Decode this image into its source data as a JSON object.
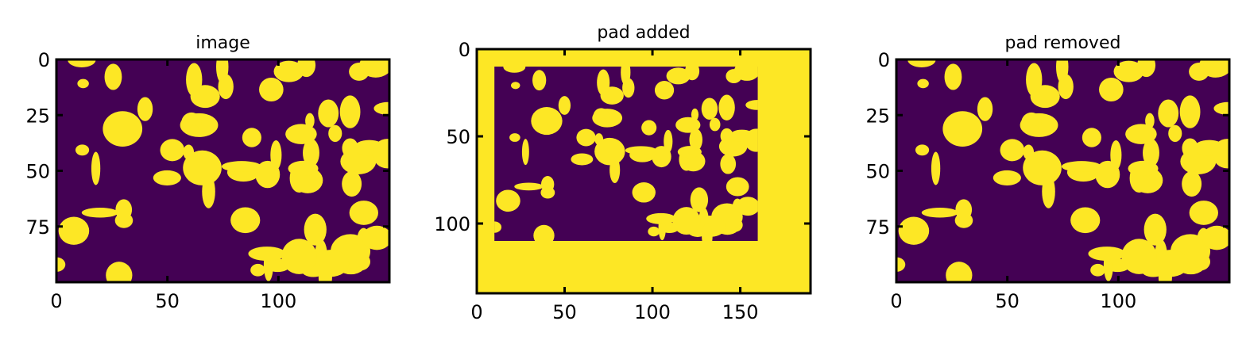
{
  "chart_data": [
    {
      "type": "image",
      "title": "image",
      "xlim": [
        0,
        150
      ],
      "ylim": [
        100,
        0
      ],
      "xticks": [
        0,
        50,
        100
      ],
      "yticks": [
        0,
        25,
        50,
        75
      ],
      "colors": [
        "#440154",
        "#fde725"
      ]
    },
    {
      "type": "image",
      "title": "pad added",
      "xlim": [
        0,
        190
      ],
      "ylim": [
        140,
        0
      ],
      "xticks": [
        0,
        50,
        100,
        150
      ],
      "yticks": [
        0,
        50,
        100
      ],
      "colors": [
        "#440154",
        "#fde725"
      ]
    },
    {
      "type": "image",
      "title": "pad removed",
      "xlim": [
        0,
        150
      ],
      "ylim": [
        100,
        0
      ],
      "xticks": [
        0,
        50,
        100
      ],
      "yticks": [
        0,
        25,
        50,
        75
      ],
      "colors": [
        "#440154",
        "#fde725"
      ]
    }
  ]
}
